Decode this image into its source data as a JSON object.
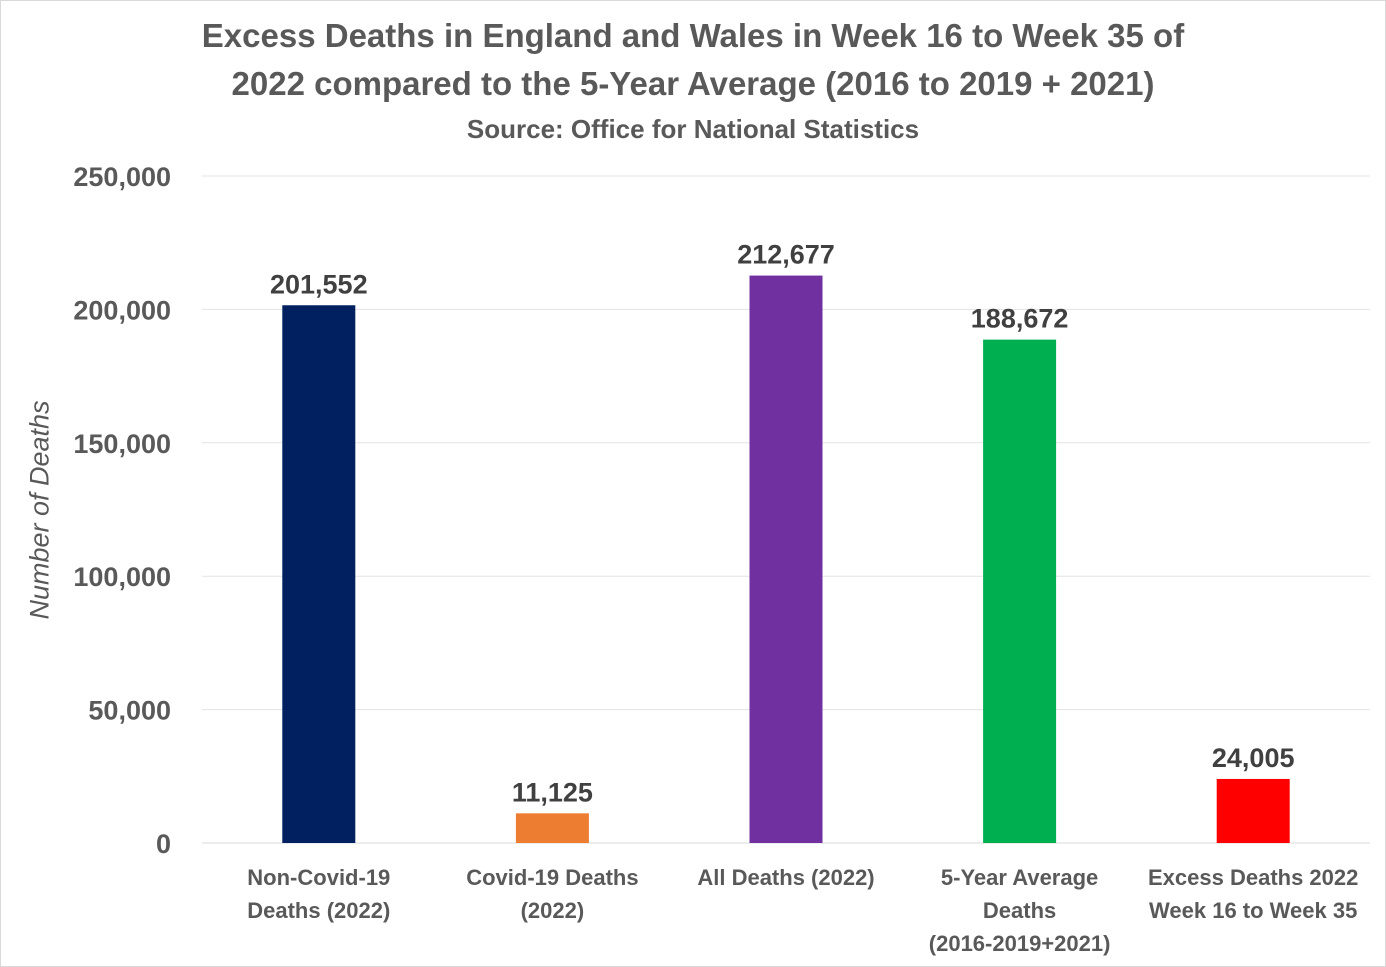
{
  "chart_data": {
    "type": "bar",
    "title": "Excess Deaths in England and Wales in Week 16 to Week 35 of 2022 compared to the 5-Year Average (2016 to 2019 + 2021)",
    "title_lines": [
      "Excess Deaths in England and Wales in Week 16 to Week 35 of",
      "2022 compared to the 5-Year Average (2016 to 2019 + 2021)"
    ],
    "subtitle": "Source: Office for National Statistics",
    "xlabel": "",
    "ylabel": "Number of Deaths",
    "ylim": [
      0,
      250000
    ],
    "yticks": [
      0,
      50000,
      100000,
      150000,
      200000,
      250000
    ],
    "ytick_labels": [
      "0",
      "50,000",
      "100,000",
      "150,000",
      "200,000",
      "250,000"
    ],
    "grid": true,
    "legend": "none",
    "categories": [
      [
        "Non-Covid-19",
        "Deaths (2022)"
      ],
      [
        "Covid-19 Deaths",
        "(2022)"
      ],
      [
        "All Deaths (2022)"
      ],
      [
        "5-Year Average",
        "Deaths",
        "(2016-2019+2021)"
      ],
      [
        "Excess Deaths 2022",
        "Week 16 to Week 35"
      ]
    ],
    "values": [
      201552,
      11125,
      212677,
      188672,
      24005
    ],
    "value_labels": [
      "201,552",
      "11,125",
      "212,677",
      "188,672",
      "24,005"
    ],
    "colors": [
      "#002060",
      "#ED7D31",
      "#7030A0",
      "#00B050",
      "#FF0000"
    ]
  }
}
